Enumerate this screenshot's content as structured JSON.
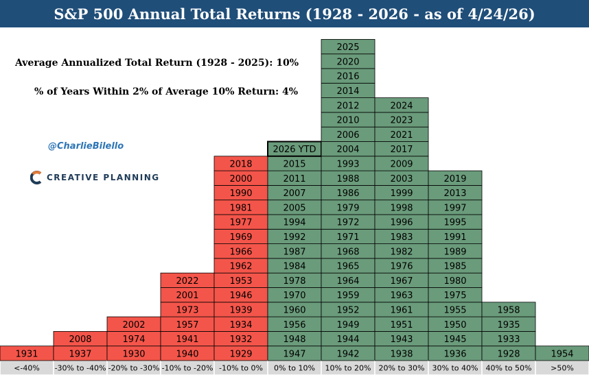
{
  "title": "S&P 500 Annual Total Returns (1928 - 2026 - as of 4/24/26)",
  "stats": {
    "avg": "Average Annualized Total Return (1928 - 2025): 10%",
    "within": "% of Years Within 2% of Average 10% Return: 4%"
  },
  "handle": "@CharlieBilello",
  "logo_text": "CREATIVE PLANNING",
  "logo_icon": "creative-planning-c-icon",
  "colors": {
    "title_bg": "#1f4e79",
    "negative": "#f4554a",
    "positive": "#6a9b7b",
    "label_bg": "#d9d9d9"
  },
  "chart_data": {
    "type": "table",
    "categories": [
      "<-40%",
      "-30% to -40%",
      "-20% to -30%",
      "-10% to -20%",
      "-10% to 0%",
      "0% to 10%",
      "10% to 20%",
      "20% to 30%",
      "30% to 40%",
      "40% to 50%",
      ">50%"
    ],
    "bins": [
      {
        "label": "<-40%",
        "sign": "negative",
        "years": [
          "1931"
        ]
      },
      {
        "label": "-30% to -40%",
        "sign": "negative",
        "years": [
          "1937",
          "2008"
        ]
      },
      {
        "label": "-20% to -30%",
        "sign": "negative",
        "years": [
          "1930",
          "1974",
          "2002"
        ]
      },
      {
        "label": "-10% to -20%",
        "sign": "negative",
        "years": [
          "1940",
          "1941",
          "1957",
          "1973",
          "2001",
          "2022"
        ]
      },
      {
        "label": "-10% to 0%",
        "sign": "negative",
        "years": [
          "1929",
          "1932",
          "1934",
          "1939",
          "1946",
          "1953",
          "1962",
          "1966",
          "1969",
          "1977",
          "1981",
          "1990",
          "2000",
          "2018"
        ]
      },
      {
        "label": "0% to 10%",
        "sign": "positive",
        "years": [
          "1947",
          "1948",
          "1956",
          "1960",
          "1970",
          "1978",
          "1984",
          "1987",
          "1992",
          "1994",
          "2005",
          "2007",
          "2011",
          "2015",
          "2026 YTD"
        ],
        "highlight": "2026 YTD"
      },
      {
        "label": "10% to 20%",
        "sign": "positive",
        "years": [
          "1942",
          "1944",
          "1949",
          "1952",
          "1959",
          "1964",
          "1965",
          "1968",
          "1971",
          "1972",
          "1979",
          "1986",
          "1988",
          "1993",
          "2004",
          "2006",
          "2010",
          "2012",
          "2014",
          "2016",
          "2020",
          "2025"
        ]
      },
      {
        "label": "20% to 30%",
        "sign": "positive",
        "years": [
          "1938",
          "1943",
          "1951",
          "1961",
          "1963",
          "1967",
          "1976",
          "1982",
          "1983",
          "1996",
          "1998",
          "1999",
          "2003",
          "2009",
          "2017",
          "2021",
          "2023",
          "2024"
        ]
      },
      {
        "label": "30% to 40%",
        "sign": "positive",
        "years": [
          "1936",
          "1945",
          "1950",
          "1955",
          "1975",
          "1980",
          "1985",
          "1989",
          "1991",
          "1995",
          "1997",
          "2013",
          "2019"
        ]
      },
      {
        "label": "40% to 50%",
        "sign": "positive",
        "years": [
          "1928",
          "1933",
          "1935",
          "1958"
        ]
      },
      {
        "label": ">50%",
        "sign": "positive",
        "years": [
          "1954"
        ]
      }
    ]
  }
}
